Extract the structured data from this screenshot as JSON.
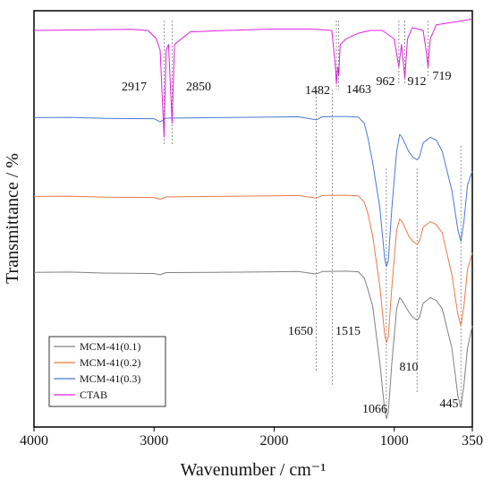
{
  "chart_data": {
    "type": "line",
    "title": "",
    "xlabel": "Wavenumber / cm⁻¹",
    "ylabel": "Transmittance / %",
    "xlim": [
      4000,
      350
    ],
    "x_reversed": true,
    "x_ticks": [
      {
        "value": 4000,
        "label": "4000"
      },
      {
        "value": 3000,
        "label": "3000"
      },
      {
        "value": 2000,
        "label": "2000"
      },
      {
        "value": 1000,
        "label": "1000"
      },
      {
        "value": 350,
        "label": "350"
      }
    ],
    "y_ticks_shown": false,
    "grid": false,
    "legend_position": "bottom-left",
    "series": [
      {
        "name": "MCM-41(0.1)",
        "color": "#808080",
        "baseline": 0.07,
        "points": [
          [
            4000,
            0.07
          ],
          [
            3700,
            0.071
          ],
          [
            3400,
            0.067
          ],
          [
            3000,
            0.066
          ],
          [
            2950,
            0.061
          ],
          [
            2900,
            0.069
          ],
          [
            2500,
            0.07
          ],
          [
            2000,
            0.072
          ],
          [
            1800,
            0.073
          ],
          [
            1650,
            0.064
          ],
          [
            1600,
            0.073
          ],
          [
            1400,
            0.074
          ],
          [
            1300,
            0.072
          ],
          [
            1250,
            0.05
          ],
          [
            1220,
            0.01
          ],
          [
            1180,
            -0.05
          ],
          [
            1120,
            -0.25
          ],
          [
            1080,
            -0.42
          ],
          [
            1066,
            -0.45
          ],
          [
            1050,
            -0.43
          ],
          [
            1020,
            -0.25
          ],
          [
            980,
            -0.06
          ],
          [
            955,
            -0.02
          ],
          [
            935,
            -0.03
          ],
          [
            880,
            -0.07
          ],
          [
            845,
            -0.09
          ],
          [
            810,
            -0.1
          ],
          [
            790,
            -0.09
          ],
          [
            760,
            -0.04
          ],
          [
            700,
            -0.02
          ],
          [
            650,
            -0.03
          ],
          [
            600,
            -0.06
          ],
          [
            520,
            -0.2
          ],
          [
            470,
            -0.37
          ],
          [
            445,
            -0.41
          ],
          [
            420,
            -0.33
          ],
          [
            390,
            -0.2
          ],
          [
            350,
            -0.12
          ]
        ]
      },
      {
        "name": "MCM-41(0.2)",
        "color": "#e87a4b",
        "baseline": 0.34,
        "points": [
          [
            4000,
            0.34
          ],
          [
            3700,
            0.341
          ],
          [
            3400,
            0.337
          ],
          [
            3000,
            0.336
          ],
          [
            2950,
            0.33
          ],
          [
            2900,
            0.338
          ],
          [
            2500,
            0.34
          ],
          [
            2000,
            0.342
          ],
          [
            1800,
            0.343
          ],
          [
            1650,
            0.334
          ],
          [
            1600,
            0.343
          ],
          [
            1400,
            0.344
          ],
          [
            1300,
            0.342
          ],
          [
            1250,
            0.32
          ],
          [
            1220,
            0.28
          ],
          [
            1180,
            0.2
          ],
          [
            1120,
            0.02
          ],
          [
            1080,
            -0.15
          ],
          [
            1066,
            -0.18
          ],
          [
            1050,
            -0.16
          ],
          [
            1020,
            0.02
          ],
          [
            980,
            0.22
          ],
          [
            955,
            0.26
          ],
          [
            935,
            0.25
          ],
          [
            880,
            0.2
          ],
          [
            845,
            0.18
          ],
          [
            810,
            0.17
          ],
          [
            790,
            0.18
          ],
          [
            760,
            0.23
          ],
          [
            700,
            0.25
          ],
          [
            650,
            0.24
          ],
          [
            600,
            0.21
          ],
          [
            520,
            0.06
          ],
          [
            470,
            -0.08
          ],
          [
            445,
            -0.12
          ],
          [
            420,
            -0.05
          ],
          [
            390,
            0.08
          ],
          [
            350,
            0.14
          ]
        ]
      },
      {
        "name": "MCM-41(0.3)",
        "color": "#4a78d4",
        "baseline": 0.62,
        "points": [
          [
            4000,
            0.62
          ],
          [
            3700,
            0.621
          ],
          [
            3400,
            0.617
          ],
          [
            3000,
            0.616
          ],
          [
            2950,
            0.605
          ],
          [
            2900,
            0.618
          ],
          [
            2500,
            0.62
          ],
          [
            2000,
            0.622
          ],
          [
            1800,
            0.623
          ],
          [
            1650,
            0.612
          ],
          [
            1600,
            0.623
          ],
          [
            1400,
            0.624
          ],
          [
            1300,
            0.622
          ],
          [
            1250,
            0.6
          ],
          [
            1220,
            0.55
          ],
          [
            1180,
            0.46
          ],
          [
            1120,
            0.3
          ],
          [
            1080,
            0.12
          ],
          [
            1066,
            0.09
          ],
          [
            1050,
            0.11
          ],
          [
            1020,
            0.3
          ],
          [
            980,
            0.5
          ],
          [
            955,
            0.56
          ],
          [
            935,
            0.55
          ],
          [
            880,
            0.5
          ],
          [
            845,
            0.48
          ],
          [
            810,
            0.47
          ],
          [
            790,
            0.48
          ],
          [
            760,
            0.53
          ],
          [
            700,
            0.55
          ],
          [
            650,
            0.54
          ],
          [
            600,
            0.5
          ],
          [
            520,
            0.36
          ],
          [
            470,
            0.22
          ],
          [
            445,
            0.18
          ],
          [
            420,
            0.25
          ],
          [
            390,
            0.38
          ],
          [
            350,
            0.43
          ]
        ]
      },
      {
        "name": "CTAB",
        "color": "#e020e0",
        "baseline": 0.93,
        "points": [
          [
            4000,
            0.93
          ],
          [
            3600,
            0.932
          ],
          [
            3200,
            0.934
          ],
          [
            3050,
            0.93
          ],
          [
            2980,
            0.9
          ],
          [
            2950,
            0.86
          ],
          [
            2917,
            0.55
          ],
          [
            2900,
            0.86
          ],
          [
            2880,
            0.88
          ],
          [
            2850,
            0.6
          ],
          [
            2830,
            0.88
          ],
          [
            2700,
            0.925
          ],
          [
            2400,
            0.93
          ],
          [
            2000,
            0.935
          ],
          [
            1700,
            0.935
          ],
          [
            1520,
            0.93
          ],
          [
            1490,
            0.8
          ],
          [
            1482,
            0.74
          ],
          [
            1470,
            0.8
          ],
          [
            1463,
            0.77
          ],
          [
            1450,
            0.88
          ],
          [
            1400,
            0.9
          ],
          [
            1300,
            0.92
          ],
          [
            1200,
            0.93
          ],
          [
            1100,
            0.93
          ],
          [
            1000,
            0.9
          ],
          [
            962,
            0.8
          ],
          [
            940,
            0.88
          ],
          [
            912,
            0.76
          ],
          [
            890,
            0.9
          ],
          [
            850,
            0.94
          ],
          [
            760,
            0.93
          ],
          [
            735,
            0.86
          ],
          [
            719,
            0.8
          ],
          [
            700,
            0.9
          ],
          [
            650,
            0.95
          ],
          [
            500,
            0.96
          ],
          [
            350,
            0.97
          ]
        ]
      }
    ],
    "annotations": [
      {
        "label": "2917",
        "x": 2917
      },
      {
        "label": "2850",
        "x": 2850
      },
      {
        "label": "1482",
        "x": 1482
      },
      {
        "label": "1463",
        "x": 1463
      },
      {
        "label": "962",
        "x": 962
      },
      {
        "label": "912",
        "x": 912
      },
      {
        "label": "719",
        "x": 719
      },
      {
        "label": "1650",
        "x": 1650
      },
      {
        "label": "1515",
        "x": 1515
      },
      {
        "label": "810",
        "x": 810
      },
      {
        "label": "1066",
        "x": 1066
      },
      {
        "label": "445",
        "x": 445
      }
    ],
    "colors": {
      "axis": "#000000",
      "dotted_guides": "#7a7a7a"
    }
  }
}
